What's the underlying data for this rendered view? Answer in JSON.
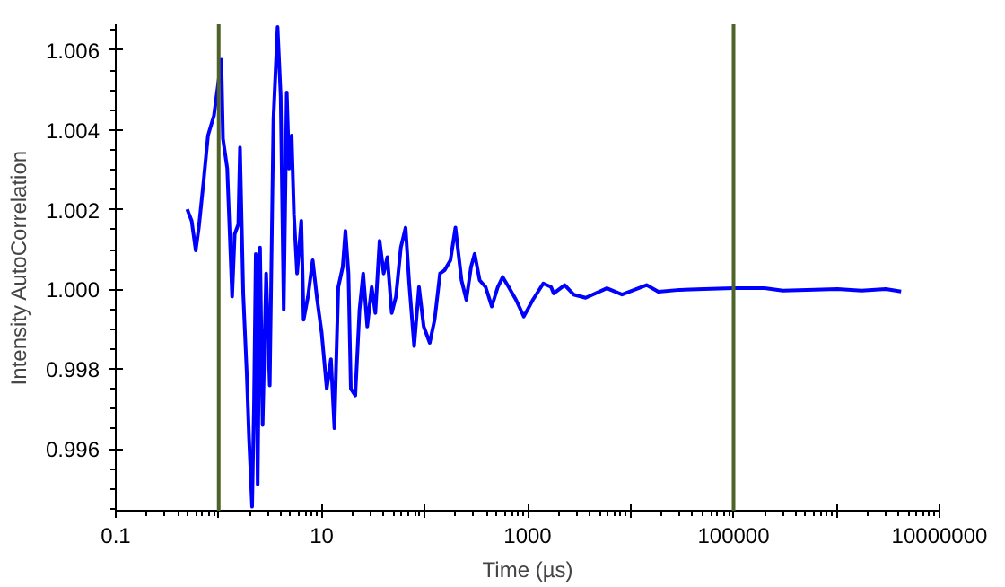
{
  "chart_data": {
    "type": "line",
    "xlabel": "Time (µs)",
    "ylabel": "Intensity AutoCorrelation",
    "log": "x",
    "grid": false,
    "marker": "none",
    "line_style": "solid",
    "xlim": [
      0.1,
      10000000
    ],
    "ylim": [
      0.99445,
      1.00665
    ],
    "xticks": [
      0.1,
      {
        "value": 1,
        "label": null
      },
      10,
      {
        "value": 100,
        "label": null
      },
      1000,
      {
        "value": 10000,
        "label": null
      },
      100000,
      {
        "value": 1000000,
        "label": null
      },
      10000000
    ],
    "yticks": [
      0.996,
      0.998,
      {
        "value": 1.0,
        "label": "1.000"
      },
      1.002,
      1.004,
      1.006
    ],
    "ref_lines": [
      {
        "axis": "x",
        "value": 1,
        "color": "#4f6228"
      },
      {
        "axis": "x",
        "value": 100000,
        "color": "#4f6228"
      }
    ],
    "series": [
      {
        "color": "#0000ff",
        "x": [
          0.494,
          0.546,
          0.598,
          0.641,
          0.713,
          0.787,
          0.899,
          1.0,
          1.06,
          1.1,
          1.21,
          1.28,
          1.35,
          1.43,
          1.55,
          1.61,
          1.73,
          1.87,
          1.97,
          2.11,
          2.2,
          2.29,
          2.39,
          2.52,
          2.67,
          2.89,
          3.13,
          3.4,
          3.73,
          4.0,
          4.28,
          4.58,
          4.83,
          5.11,
          5.38,
          5.77,
          6.34,
          6.68,
          7.36,
          8.18,
          9.04,
          10.0,
          11.2,
          12.3,
          13.3,
          14.5,
          16.0,
          17.0,
          18.2,
          19.2,
          21.2,
          23.3,
          25.3,
          27.7,
          30.6,
          33.2,
          36.5,
          40.0,
          43.4,
          47.9,
          52.6,
          58.7,
          65.3,
          70.8,
          79.1,
          88.1,
          97.9,
          112,
          125,
          141,
          156,
          178,
          199,
          228,
          254,
          282,
          306,
          342,
          391,
          449,
          513,
          573,
          655,
          771,
          918,
          1125,
          1419,
          1690,
          1790,
          2290,
          2800,
          3660,
          5890,
          8260,
          14300,
          18600,
          30000,
          51500,
          100000,
          200000,
          301000,
          518000,
          1020000,
          1750000,
          3010000,
          4240000
        ],
        "values": [
          1.00201,
          1.00172,
          1.00098,
          1.00155,
          1.00271,
          1.00386,
          1.00436,
          1.00526,
          1.00576,
          1.00378,
          1.00303,
          1.00139,
          0.99982,
          1.00139,
          1.00163,
          1.00356,
          0.9999,
          0.99792,
          0.99627,
          0.99455,
          0.99709,
          1.00089,
          0.99511,
          1.00105,
          0.9966,
          1.0004,
          0.99759,
          1.00427,
          1.00658,
          1.00485,
          0.99949,
          1.00494,
          1.00303,
          1.00386,
          1.00188,
          1.0004,
          1.00172,
          0.99924,
          0.99982,
          1.00073,
          0.99974,
          0.99891,
          0.99751,
          0.99825,
          0.99652,
          1.00006,
          1.00056,
          1.00147,
          1.0004,
          0.99751,
          0.99734,
          0.99949,
          1.0004,
          0.99907,
          1.00006,
          0.99941,
          1.00122,
          1.0004,
          1.00081,
          0.99941,
          0.99982,
          1.00105,
          1.00155,
          1.00015,
          0.99858,
          1.00006,
          0.99907,
          0.99866,
          0.99924,
          1.0004,
          1.00048,
          1.00073,
          1.00155,
          1.00023,
          0.99974,
          1.00056,
          1.00089,
          1.00023,
          1.00006,
          0.99957,
          1.00006,
          1.00031,
          1.00006,
          0.99974,
          0.99932,
          0.99974,
          1.00015,
          1.00006,
          0.9999,
          1.00011,
          0.99987,
          0.99979,
          1.00003,
          0.99987,
          1.00011,
          0.99994,
          0.99999,
          1.00001,
          1.00003,
          1.00003,
          0.99997,
          0.99999,
          1.00001,
          0.99997,
          1.00001,
          0.99995
        ]
      }
    ]
  }
}
